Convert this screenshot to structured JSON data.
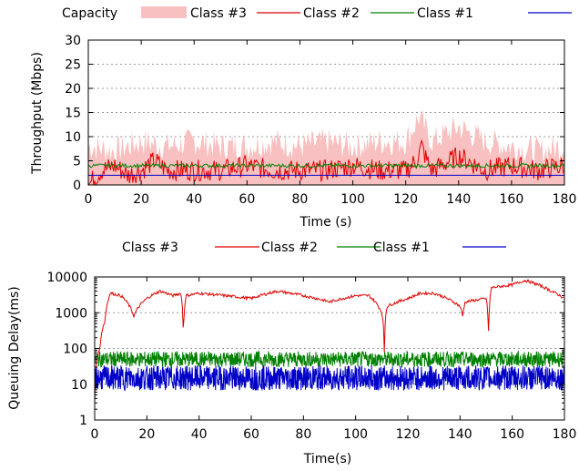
{
  "chart_data": [
    {
      "type": "line",
      "xlabel": "Time (s)",
      "ylabel": "Throughput (Mbps)",
      "xlim": [
        0,
        180
      ],
      "ylim": [
        0,
        30
      ],
      "xticks": [
        0,
        20,
        40,
        60,
        80,
        100,
        120,
        140,
        160,
        180
      ],
      "yticks": [
        0,
        5,
        10,
        15,
        20,
        25,
        30
      ],
      "grid": "horizontal-dotted",
      "legend_position": "top",
      "legend": [
        "Capacity",
        "Class #3",
        "Class #2",
        "Class #1"
      ],
      "series": [
        {
          "name": "Capacity",
          "kind": "area",
          "color": "#f8c0c0",
          "x": [
            0,
            10,
            20,
            30,
            40,
            50,
            60,
            70,
            80,
            90,
            100,
            110,
            120,
            125,
            130,
            140,
            150,
            160,
            170,
            180
          ],
          "values": [
            8,
            7,
            9,
            8,
            9,
            8,
            8,
            9,
            8,
            9,
            8,
            9,
            9,
            14,
            9,
            12,
            9,
            8,
            7,
            8
          ]
        },
        {
          "name": "Class #3",
          "color": "#e00000",
          "x": [
            0,
            5,
            10,
            15,
            20,
            25,
            30,
            40,
            50,
            60,
            70,
            80,
            90,
            100,
            110,
            120,
            124,
            126,
            128,
            130,
            140,
            150,
            160,
            170,
            180
          ],
          "values": [
            0,
            3,
            4,
            2,
            3,
            5,
            3,
            3,
            3,
            4,
            3,
            3,
            3,
            4,
            3,
            3,
            5,
            8,
            5,
            3,
            6,
            3,
            4,
            3,
            4
          ]
        },
        {
          "name": "Class #2",
          "color": "#008000",
          "x": [
            0,
            10,
            20,
            30,
            40,
            50,
            60,
            70,
            80,
            90,
            100,
            110,
            120,
            130,
            140,
            150,
            160,
            170,
            180
          ],
          "values": [
            4,
            4,
            4,
            4,
            4,
            4,
            4,
            4,
            4,
            4,
            4,
            4,
            4,
            4,
            4,
            4,
            4,
            4,
            4
          ]
        },
        {
          "name": "Class #1",
          "color": "#0000c8",
          "x": [
            0,
            10,
            20,
            30,
            40,
            50,
            60,
            70,
            80,
            90,
            100,
            110,
            120,
            130,
            140,
            150,
            160,
            170,
            180
          ],
          "values": [
            2,
            2,
            2,
            2,
            2,
            2,
            2,
            2,
            2,
            2,
            2,
            2,
            2,
            2,
            2,
            2,
            2,
            2,
            2
          ]
        }
      ]
    },
    {
      "type": "line",
      "xlabel": "Time(s)",
      "ylabel": "Queuing Delay(ms)",
      "xlim": [
        0,
        180
      ],
      "ylim": [
        1,
        10000
      ],
      "yscale": "log",
      "xticks": [
        0,
        20,
        40,
        60,
        80,
        100,
        120,
        140,
        160,
        180
      ],
      "yticks": [
        1,
        10,
        100,
        1000,
        10000
      ],
      "grid": "horizontal-dotted",
      "legend_position": "top",
      "legend": [
        "Class #3",
        "Class #2",
        "Class #1"
      ],
      "series": [
        {
          "name": "Class #3",
          "color": "#e00000",
          "x": [
            0,
            2,
            4,
            6,
            10,
            15,
            20,
            25,
            30,
            33,
            34,
            35,
            40,
            50,
            60,
            70,
            80,
            90,
            100,
            105,
            110,
            111,
            112,
            120,
            125,
            130,
            140,
            141,
            142,
            150,
            151,
            152,
            160,
            165,
            170,
            175,
            180
          ],
          "values": [
            3,
            100,
            600,
            3500,
            3000,
            800,
            2500,
            4000,
            3000,
            3500,
            60,
            3000,
            3500,
            3000,
            2500,
            4000,
            3000,
            2000,
            3000,
            3000,
            1000,
            80,
            1500,
            2500,
            3500,
            3500,
            1500,
            800,
            2000,
            2500,
            60,
            5000,
            6000,
            8000,
            6000,
            4000,
            2500
          ]
        },
        {
          "name": "Class #2",
          "color": "#008000",
          "x": [
            0,
            10,
            20,
            30,
            40,
            50,
            60,
            70,
            80,
            90,
            100,
            110,
            120,
            130,
            140,
            150,
            160,
            170,
            180
          ],
          "values": [
            50,
            50,
            50,
            50,
            50,
            50,
            50,
            50,
            50,
            50,
            50,
            50,
            50,
            50,
            50,
            50,
            50,
            50,
            50
          ]
        },
        {
          "name": "Class #1",
          "color": "#0000c8",
          "x": [
            0,
            10,
            20,
            30,
            40,
            50,
            60,
            70,
            80,
            90,
            100,
            110,
            120,
            130,
            140,
            150,
            160,
            170,
            180
          ],
          "values": [
            15,
            15,
            15,
            15,
            15,
            15,
            15,
            15,
            15,
            15,
            15,
            15,
            15,
            15,
            15,
            15,
            15,
            15,
            15
          ]
        }
      ]
    }
  ]
}
